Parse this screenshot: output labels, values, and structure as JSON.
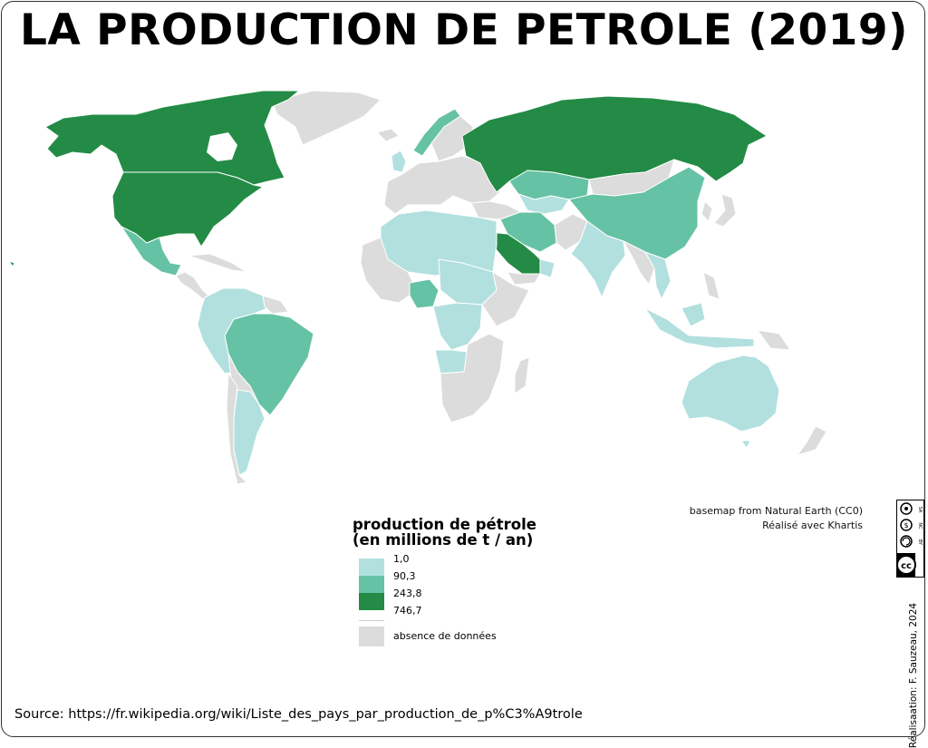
{
  "title": "LA PRODUCTION DE PETROLE (2019)",
  "legend": {
    "title_line1": "production de pétrole",
    "title_line2": "(en millions de t / an)",
    "breaks": [
      "1,0",
      "90,3",
      "243,8",
      "746,7"
    ],
    "classes": [
      {
        "color": "#b2e0df",
        "range": "1,0 – 90,3"
      },
      {
        "color": "#66c2a4",
        "range": "90,3 – 243,8"
      },
      {
        "color": "#238b45",
        "range": "243,8 – 746,7"
      }
    ],
    "no_data_color": "#dcdcdc",
    "no_data_label": "absence de données"
  },
  "credits": {
    "line1": "basemap from Natural Earth (CC0)",
    "line2": "Réalisé avec Khartis"
  },
  "license": {
    "badges": [
      "cc",
      "BY",
      "NC",
      "SA"
    ]
  },
  "author": "Réalisaation: F. Sauzeau, 2024",
  "source": "Source: https://fr.wikipedia.org/wiki/Liste_des_pays_par_production_de_p%C3%A9trole",
  "map": {
    "classes_by_region": {
      "dark": [
        "Canada",
        "États-Unis",
        "Russie",
        "Arabie saoudite"
      ],
      "medium": [
        "Mexique",
        "Brésil",
        "Kazakhstan",
        "Chine",
        "Iran",
        "Irak",
        "Koweït",
        "Émirats arabes unis",
        "Nigeria",
        "Norvège"
      ],
      "light": [
        "Venezuela",
        "Colombie",
        "Équateur",
        "Pérou",
        "Argentine",
        "Algérie",
        "Libye",
        "Égypte",
        "Angola",
        "Soudan",
        "Inde",
        "Indonésie",
        "Malaisie",
        "Vietnam",
        "Australie",
        "Royaume-Uni",
        "Oman",
        "Azerbaïdjan",
        "Turkménistan",
        "Ouzbékistan",
        "Tchad",
        "Congo"
      ]
    }
  }
}
